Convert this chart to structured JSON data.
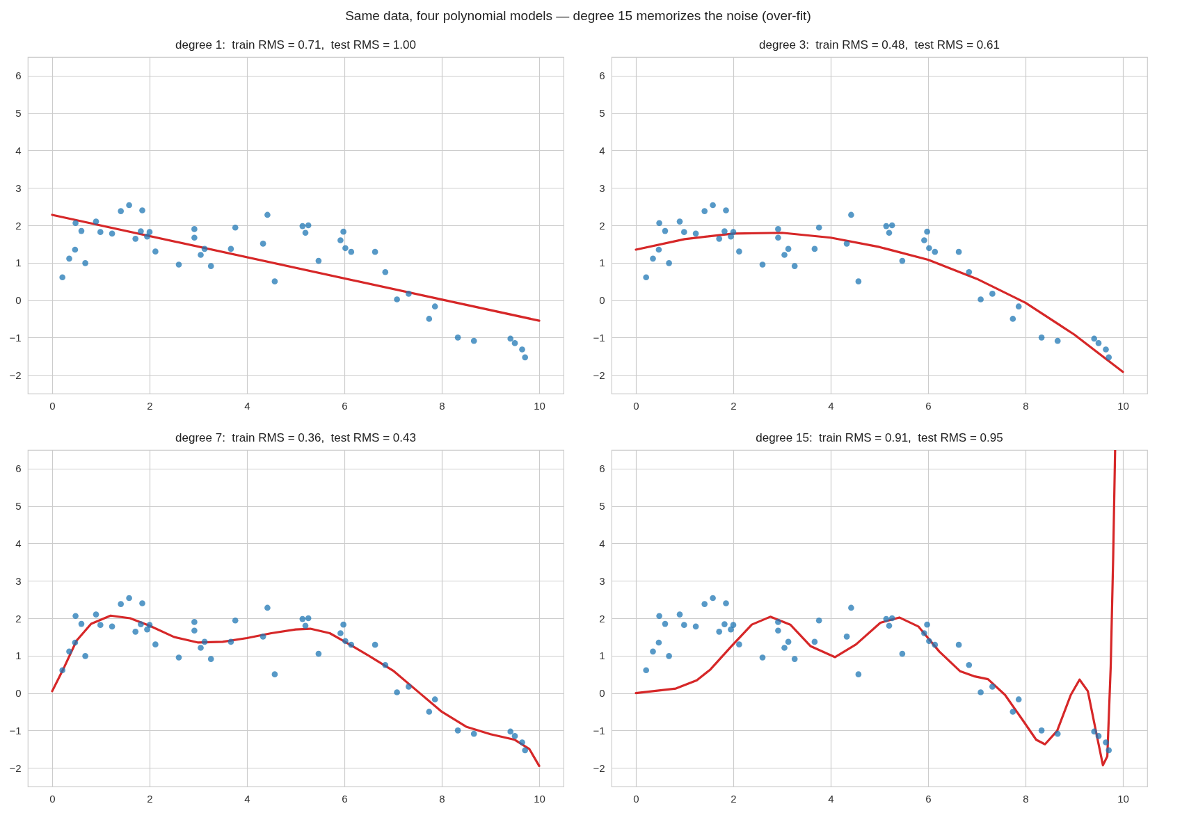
{
  "chart_data": [
    {
      "type": "scatter",
      "title": "degree 1:  train RMS = 0.71,  test RMS = 1.00",
      "annotations": [
        "Same data, four polynomial models — degree 15 memorizes the noise (over-fit)"
      ],
      "xlim": [
        -0.5,
        10.5
      ],
      "ylim": [
        -2.5,
        6.5
      ],
      "xticks": [
        0,
        2,
        4,
        6,
        8,
        10
      ],
      "yticks": [
        -2,
        -1,
        0,
        1,
        2,
        3,
        4,
        5,
        6
      ],
      "grid": true,
      "series": [
        {
          "marker": "circle",
          "color": "#1f77b4",
          "x": [
            0.21,
            0.35,
            0.47,
            0.48,
            0.6,
            0.68,
            0.9,
            0.99,
            1.23,
            1.41,
            1.58,
            1.71,
            1.82,
            1.85,
            1.95,
            2.0,
            2.12,
            2.6,
            2.92,
            2.92,
            3.05,
            3.13,
            3.26,
            3.67,
            3.76,
            4.33,
            4.42,
            4.57,
            5.14,
            5.2,
            5.26,
            5.47,
            5.92,
            5.98,
            6.02,
            6.14,
            6.63,
            6.84,
            7.08,
            7.32,
            7.74,
            7.86,
            8.33,
            8.66,
            9.41,
            9.5,
            9.65,
            9.71
          ],
          "values": [
            0.61,
            1.11,
            1.35,
            2.06,
            1.85,
            0.99,
            2.1,
            1.82,
            1.78,
            2.38,
            2.54,
            1.64,
            1.84,
            2.4,
            1.7,
            1.82,
            1.3,
            0.95,
            1.9,
            1.67,
            1.21,
            1.37,
            0.91,
            1.37,
            1.94,
            1.51,
            2.28,
            0.5,
            1.98,
            1.8,
            2.0,
            1.05,
            1.6,
            1.83,
            1.39,
            1.29,
            1.29,
            0.75,
            0.02,
            0.17,
            -0.5,
            -0.17,
            -1.0,
            -1.09,
            -1.03,
            -1.15,
            -1.32,
            -1.53
          ]
        },
        {
          "type": "line",
          "color": "#d62728",
          "x": [
            0,
            10
          ],
          "values": [
            2.28,
            -0.55
          ]
        }
      ]
    },
    {
      "type": "scatter",
      "title": "degree 3:  train RMS = 0.48,  test RMS = 0.61",
      "xlim": [
        -0.5,
        10.5
      ],
      "ylim": [
        -2.5,
        6.5
      ],
      "xticks": [
        0,
        2,
        4,
        6,
        8,
        10
      ],
      "yticks": [
        -2,
        -1,
        0,
        1,
        2,
        3,
        4,
        5,
        6
      ],
      "grid": true,
      "series": [
        {
          "marker": "circle",
          "color": "#1f77b4",
          "x": [
            0.21,
            0.35,
            0.47,
            0.48,
            0.6,
            0.68,
            0.9,
            0.99,
            1.23,
            1.41,
            1.58,
            1.71,
            1.82,
            1.85,
            1.95,
            2.0,
            2.12,
            2.6,
            2.92,
            2.92,
            3.05,
            3.13,
            3.26,
            3.67,
            3.76,
            4.33,
            4.42,
            4.57,
            5.14,
            5.2,
            5.26,
            5.47,
            5.92,
            5.98,
            6.02,
            6.14,
            6.63,
            6.84,
            7.08,
            7.32,
            7.74,
            7.86,
            8.33,
            8.66,
            9.41,
            9.5,
            9.65,
            9.71
          ],
          "values": [
            0.61,
            1.11,
            1.35,
            2.06,
            1.85,
            0.99,
            2.1,
            1.82,
            1.78,
            2.38,
            2.54,
            1.64,
            1.84,
            2.4,
            1.7,
            1.82,
            1.3,
            0.95,
            1.9,
            1.67,
            1.21,
            1.37,
            0.91,
            1.37,
            1.94,
            1.51,
            2.28,
            0.5,
            1.98,
            1.8,
            2.0,
            1.05,
            1.6,
            1.83,
            1.39,
            1.29,
            1.29,
            0.75,
            0.02,
            0.17,
            -0.5,
            -0.17,
            -1.0,
            -1.09,
            -1.03,
            -1.15,
            -1.32,
            -1.53
          ]
        },
        {
          "type": "line",
          "color": "#d62728",
          "x": [
            0,
            1,
            2,
            3,
            4,
            5,
            6,
            7,
            8,
            9,
            10
          ],
          "values": [
            1.35,
            1.63,
            1.78,
            1.8,
            1.67,
            1.42,
            1.08,
            0.57,
            -0.07,
            -0.92,
            -1.92
          ]
        }
      ]
    },
    {
      "type": "scatter",
      "title": "degree 7:  train RMS = 0.36,  test RMS = 0.43",
      "xlim": [
        -0.5,
        10.5
      ],
      "ylim": [
        -2.5,
        6.5
      ],
      "xticks": [
        0,
        2,
        4,
        6,
        8,
        10
      ],
      "yticks": [
        -2,
        -1,
        0,
        1,
        2,
        3,
        4,
        5,
        6
      ],
      "grid": true,
      "series": [
        {
          "marker": "circle",
          "color": "#1f77b4",
          "x": [
            0.21,
            0.35,
            0.47,
            0.48,
            0.6,
            0.68,
            0.9,
            0.99,
            1.23,
            1.41,
            1.58,
            1.71,
            1.82,
            1.85,
            1.95,
            2.0,
            2.12,
            2.6,
            2.92,
            2.92,
            3.05,
            3.13,
            3.26,
            3.67,
            3.76,
            4.33,
            4.42,
            4.57,
            5.14,
            5.2,
            5.26,
            5.47,
            5.92,
            5.98,
            6.02,
            6.14,
            6.63,
            6.84,
            7.08,
            7.32,
            7.74,
            7.86,
            8.33,
            8.66,
            9.41,
            9.5,
            9.65,
            9.71
          ],
          "values": [
            0.61,
            1.11,
            1.35,
            2.06,
            1.85,
            0.99,
            2.1,
            1.82,
            1.78,
            2.38,
            2.54,
            1.64,
            1.84,
            2.4,
            1.7,
            1.82,
            1.3,
            0.95,
            1.9,
            1.67,
            1.21,
            1.37,
            0.91,
            1.37,
            1.94,
            1.51,
            2.28,
            0.5,
            1.98,
            1.8,
            2.0,
            1.05,
            1.6,
            1.83,
            1.39,
            1.29,
            1.29,
            0.75,
            0.02,
            0.17,
            -0.5,
            -0.17,
            -1.0,
            -1.09,
            -1.03,
            -1.15,
            -1.32,
            -1.53
          ]
        },
        {
          "type": "line",
          "color": "#d62728",
          "x": [
            0,
            0.25,
            0.5,
            0.8,
            1.2,
            1.6,
            2,
            2.5,
            3,
            3.5,
            4,
            4.5,
            5,
            5.3,
            5.7,
            6,
            6.5,
            7,
            7.5,
            8,
            8.5,
            9,
            9.5,
            9.8,
            10
          ],
          "values": [
            0.05,
            0.7,
            1.4,
            1.85,
            2.07,
            2.0,
            1.8,
            1.5,
            1.35,
            1.37,
            1.47,
            1.6,
            1.7,
            1.72,
            1.6,
            1.38,
            1.0,
            0.6,
            0.05,
            -0.5,
            -0.9,
            -1.1,
            -1.25,
            -1.5,
            -1.95
          ]
        }
      ]
    },
    {
      "type": "scatter",
      "title": "degree 15:  train RMS = 0.91,  test RMS = 0.95",
      "xlim": [
        -0.5,
        10.5
      ],
      "ylim": [
        -2.5,
        6.5
      ],
      "xticks": [
        0,
        2,
        4,
        6,
        8,
        10
      ],
      "yticks": [
        -2,
        -1,
        0,
        1,
        2,
        3,
        4,
        5,
        6
      ],
      "grid": true,
      "series": [
        {
          "marker": "circle",
          "color": "#1f77b4",
          "x": [
            0.21,
            0.35,
            0.47,
            0.48,
            0.6,
            0.68,
            0.9,
            0.99,
            1.23,
            1.41,
            1.58,
            1.71,
            1.82,
            1.85,
            1.95,
            2.0,
            2.12,
            2.6,
            2.92,
            2.92,
            3.05,
            3.13,
            3.26,
            3.67,
            3.76,
            4.33,
            4.42,
            4.57,
            5.14,
            5.2,
            5.26,
            5.47,
            5.92,
            5.98,
            6.02,
            6.14,
            6.63,
            6.84,
            7.08,
            7.32,
            7.74,
            7.86,
            8.33,
            8.66,
            9.41,
            9.5,
            9.65,
            9.71
          ],
          "values": [
            0.61,
            1.11,
            1.35,
            2.06,
            1.85,
            0.99,
            2.1,
            1.82,
            1.78,
            2.38,
            2.54,
            1.64,
            1.84,
            2.4,
            1.7,
            1.82,
            1.3,
            0.95,
            1.9,
            1.67,
            1.21,
            1.37,
            0.91,
            1.37,
            1.94,
            1.51,
            2.28,
            0.5,
            1.98,
            1.8,
            2.0,
            1.05,
            1.6,
            1.83,
            1.39,
            1.29,
            1.29,
            0.75,
            0.02,
            0.17,
            -0.5,
            -0.17,
            -1.0,
            -1.09,
            -1.03,
            -1.15,
            -1.32,
            -1.53
          ]
        },
        {
          "type": "line",
          "color": "#d62728",
          "x": [
            0,
            0.82,
            1.25,
            1.53,
            1.96,
            2.38,
            2.76,
            3.17,
            3.59,
            4.09,
            4.52,
            5.02,
            5.41,
            5.8,
            6.23,
            6.66,
            6.94,
            7.23,
            7.58,
            7.94,
            8.22,
            8.4,
            8.65,
            8.93,
            9.11,
            9.28,
            9.46,
            9.59,
            9.68,
            9.75,
            9.8,
            9.84
          ],
          "values": [
            0,
            0.12,
            0.34,
            0.63,
            1.25,
            1.83,
            2.04,
            1.83,
            1.25,
            0.96,
            1.3,
            1.88,
            2.02,
            1.78,
            1.11,
            0.58,
            0.45,
            0.37,
            -0.05,
            -0.72,
            -1.25,
            -1.37,
            -1.01,
            -0.05,
            0.36,
            0.05,
            -1.11,
            -1.93,
            -1.69,
            0.72,
            3.61,
            6.5
          ]
        }
      ]
    }
  ]
}
